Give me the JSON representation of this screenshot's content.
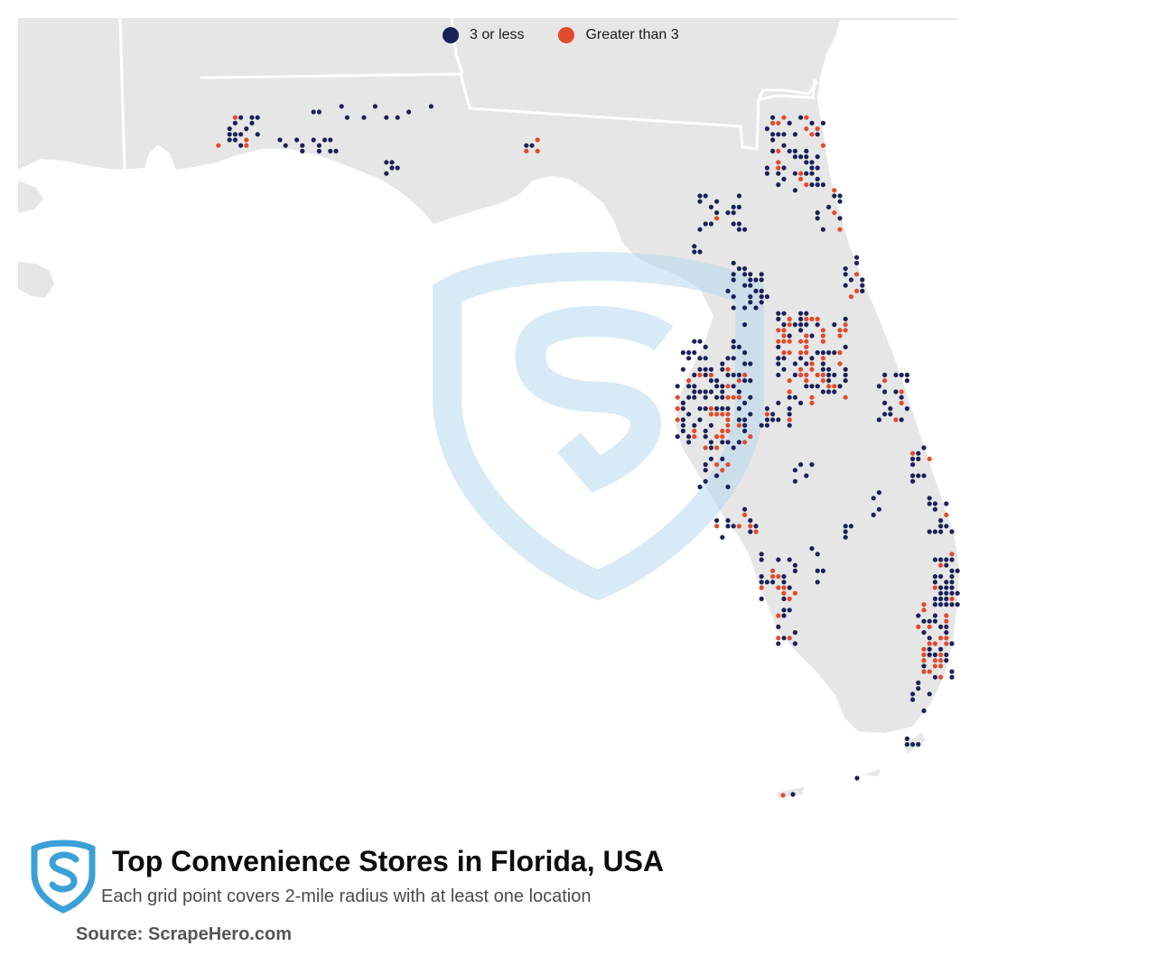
{
  "legend": {
    "items": [
      {
        "label": "3 or less",
        "color": "#1b2157"
      },
      {
        "label": "Greater than 3",
        "color": "#e34a2c"
      }
    ]
  },
  "map": {
    "land_color": "#e6e6e6",
    "border_color": "#ffffff",
    "watermark_color": "#cfe4f1"
  },
  "footer": {
    "title": "Top Convenience Stores in Florida, USA",
    "subtitle": "Each grid point covers 2-mile radius with at least one location",
    "source": "Source: ScrapeHero.com",
    "logo_color": "#3aa0d8"
  }
}
